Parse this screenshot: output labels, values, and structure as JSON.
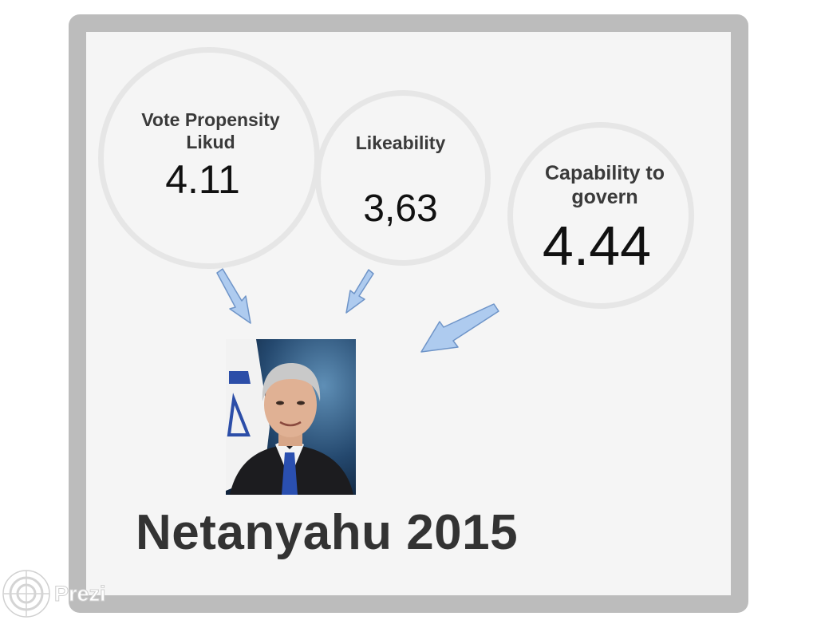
{
  "metrics": [
    {
      "label_line1": "Vote Propensity",
      "label_line2": "Likud",
      "value": "4.11"
    },
    {
      "label_line1": "Likeability",
      "label_line2": "",
      "value": "3,63"
    },
    {
      "label_line1": "Capability to",
      "label_line2": "govern",
      "value": "4.44"
    }
  ],
  "title": "Netanyahu 2015",
  "logo": {
    "text": "Prezi"
  },
  "colors": {
    "arrow": "#aecbef",
    "arrow_stroke": "#6e94c8",
    "frame": "#bcbcbc",
    "circle": "#e6e6e6"
  },
  "icons": [
    "arrow-down-right-icon",
    "arrow-down-left-icon",
    "prezi-logo-icon"
  ]
}
